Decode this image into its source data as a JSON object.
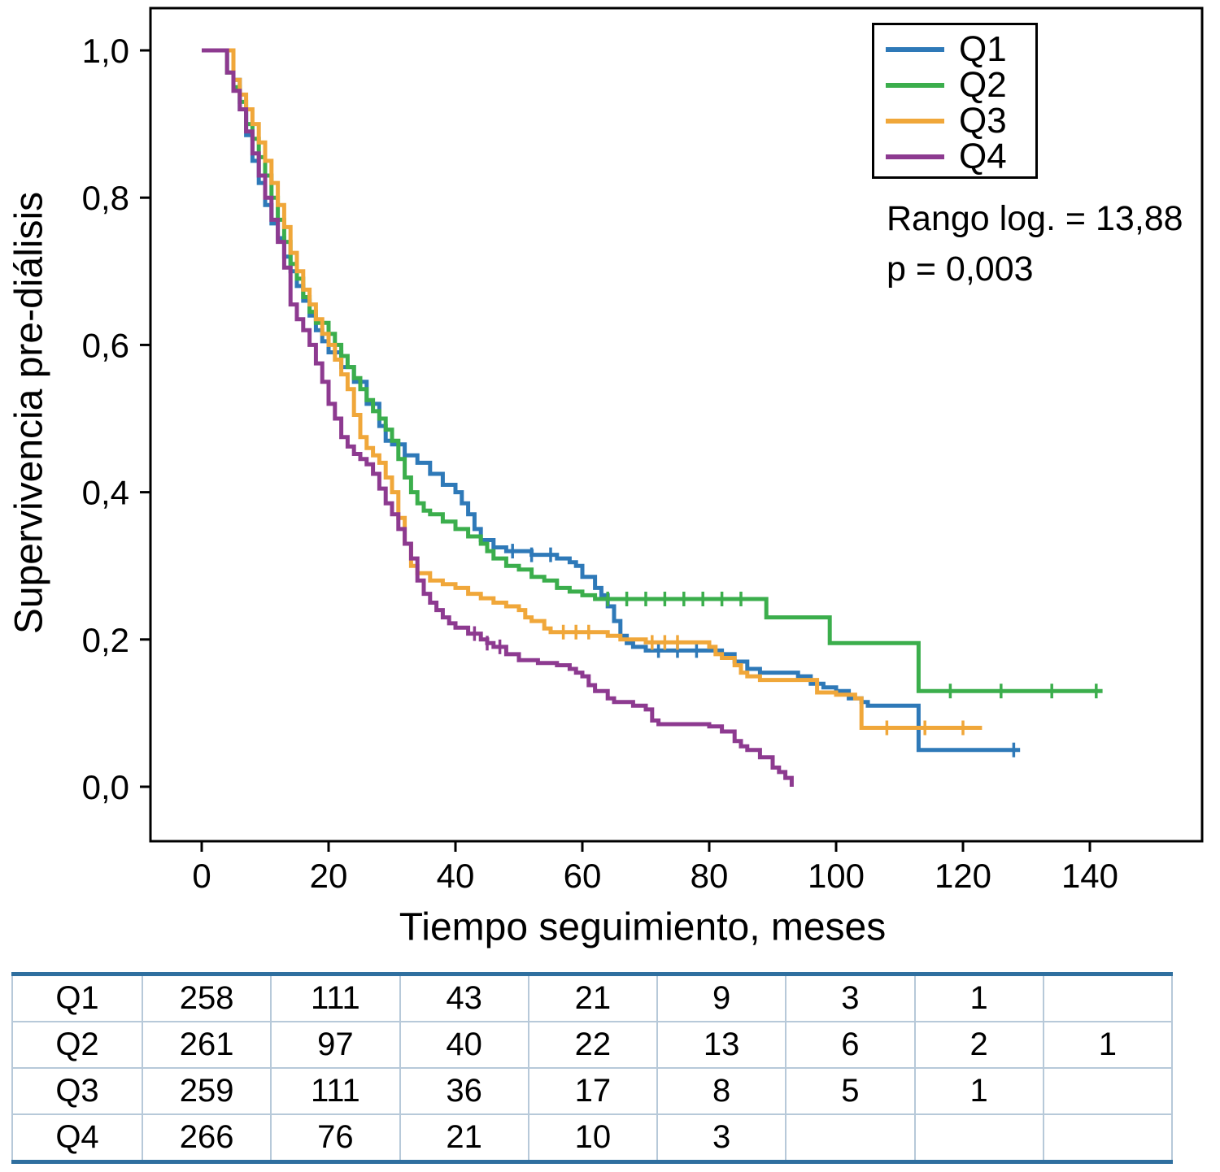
{
  "chart_data": {
    "type": "line",
    "variant": "kaplan_meier_step",
    "title": "",
    "xlabel": "Tiempo seguimiento, meses",
    "ylabel": "Supervivencia pre-diálisis",
    "xlim": [
      0,
      157
    ],
    "ylim": [
      0,
      1
    ],
    "x_ticks": [
      0,
      20,
      40,
      60,
      80,
      100,
      120,
      140
    ],
    "y_ticks": [
      0,
      0.2,
      0.4,
      0.6,
      0.8,
      1.0
    ],
    "y_tick_labels": [
      "0,0",
      "0,2",
      "0,4",
      "0,6",
      "0,8",
      "1,0"
    ],
    "grid": false,
    "legend_position": "top-right",
    "annotations": [
      "Rango log. = 13,88",
      "p = 0,003"
    ],
    "series": [
      {
        "name": "Q1",
        "color": "#2e79b8",
        "points": [
          [
            0,
            1
          ],
          [
            4,
            1
          ],
          [
            5,
            0.96
          ],
          [
            6,
            0.92
          ],
          [
            7,
            0.885
          ],
          [
            8,
            0.85
          ],
          [
            9,
            0.82
          ],
          [
            10,
            0.79
          ],
          [
            11,
            0.765
          ],
          [
            12,
            0.745
          ],
          [
            13,
            0.72
          ],
          [
            14,
            0.7
          ],
          [
            15,
            0.68
          ],
          [
            16,
            0.66
          ],
          [
            17,
            0.64
          ],
          [
            18,
            0.62
          ],
          [
            19,
            0.605
          ],
          [
            20,
            0.59
          ],
          [
            22,
            0.57
          ],
          [
            24,
            0.55
          ],
          [
            26,
            0.52
          ],
          [
            28,
            0.49
          ],
          [
            29,
            0.47
          ],
          [
            30,
            0.465
          ],
          [
            32,
            0.45
          ],
          [
            34,
            0.44
          ],
          [
            36,
            0.425
          ],
          [
            38,
            0.41
          ],
          [
            40,
            0.4
          ],
          [
            41,
            0.385
          ],
          [
            42,
            0.37
          ],
          [
            43,
            0.35
          ],
          [
            44,
            0.335
          ],
          [
            46,
            0.325
          ],
          [
            48,
            0.32
          ],
          [
            52,
            0.315
          ],
          [
            56,
            0.31
          ],
          [
            58,
            0.305
          ],
          [
            59,
            0.3
          ],
          [
            60,
            0.285
          ],
          [
            62,
            0.27
          ],
          [
            63,
            0.26
          ],
          [
            64,
            0.245
          ],
          [
            65,
            0.225
          ],
          [
            66,
            0.205
          ],
          [
            67,
            0.195
          ],
          [
            68,
            0.19
          ],
          [
            70,
            0.185
          ],
          [
            80,
            0.185
          ],
          [
            82,
            0.18
          ],
          [
            84,
            0.17
          ],
          [
            86,
            0.16
          ],
          [
            88,
            0.155
          ],
          [
            94,
            0.15
          ],
          [
            96,
            0.14
          ],
          [
            98,
            0.135
          ],
          [
            100,
            0.13
          ],
          [
            102,
            0.12
          ],
          [
            104,
            0.115
          ],
          [
            105,
            0.11
          ],
          [
            112,
            0.11
          ],
          [
            113,
            0.05
          ],
          [
            129,
            0.05
          ]
        ],
        "censor_marks": [
          49,
          52,
          55,
          72,
          75,
          78,
          128
        ]
      },
      {
        "name": "Q2",
        "color": "#3bae4c",
        "points": [
          [
            0,
            1
          ],
          [
            3,
            1
          ],
          [
            4,
            0.97
          ],
          [
            5,
            0.95
          ],
          [
            6,
            0.93
          ],
          [
            7,
            0.9
          ],
          [
            8,
            0.88
          ],
          [
            9,
            0.855
          ],
          [
            10,
            0.83
          ],
          [
            11,
            0.8
          ],
          [
            12,
            0.77
          ],
          [
            13,
            0.74
          ],
          [
            14,
            0.71
          ],
          [
            15,
            0.69
          ],
          [
            16,
            0.665
          ],
          [
            17,
            0.645
          ],
          [
            18,
            0.63
          ],
          [
            20,
            0.615
          ],
          [
            21,
            0.6
          ],
          [
            22,
            0.585
          ],
          [
            23,
            0.57
          ],
          [
            24,
            0.555
          ],
          [
            25,
            0.54
          ],
          [
            26,
            0.525
          ],
          [
            27,
            0.51
          ],
          [
            28,
            0.5
          ],
          [
            29,
            0.485
          ],
          [
            30,
            0.47
          ],
          [
            31,
            0.445
          ],
          [
            32,
            0.42
          ],
          [
            33,
            0.4
          ],
          [
            34,
            0.385
          ],
          [
            35,
            0.375
          ],
          [
            36,
            0.37
          ],
          [
            38,
            0.36
          ],
          [
            40,
            0.35
          ],
          [
            42,
            0.34
          ],
          [
            44,
            0.33
          ],
          [
            45,
            0.32
          ],
          [
            46,
            0.31
          ],
          [
            48,
            0.3
          ],
          [
            50,
            0.295
          ],
          [
            52,
            0.285
          ],
          [
            54,
            0.28
          ],
          [
            56,
            0.27
          ],
          [
            58,
            0.265
          ],
          [
            60,
            0.26
          ],
          [
            62,
            0.255
          ],
          [
            88,
            0.255
          ],
          [
            89,
            0.23
          ],
          [
            98,
            0.23
          ],
          [
            99,
            0.195
          ],
          [
            112,
            0.195
          ],
          [
            113,
            0.13
          ],
          [
            142,
            0.13
          ]
        ],
        "censor_marks": [
          64,
          67,
          70,
          73,
          76,
          79,
          82,
          85,
          118,
          126,
          134,
          141
        ]
      },
      {
        "name": "Q3",
        "color": "#f0a73a",
        "points": [
          [
            0,
            1
          ],
          [
            4,
            1
          ],
          [
            5,
            0.96
          ],
          [
            6,
            0.94
          ],
          [
            7,
            0.92
          ],
          [
            8,
            0.9
          ],
          [
            9,
            0.875
          ],
          [
            10,
            0.85
          ],
          [
            11,
            0.82
          ],
          [
            12,
            0.79
          ],
          [
            13,
            0.76
          ],
          [
            14,
            0.725
          ],
          [
            15,
            0.7
          ],
          [
            16,
            0.675
          ],
          [
            17,
            0.655
          ],
          [
            18,
            0.635
          ],
          [
            19,
            0.615
          ],
          [
            20,
            0.6
          ],
          [
            21,
            0.58
          ],
          [
            22,
            0.56
          ],
          [
            23,
            0.54
          ],
          [
            24,
            0.505
          ],
          [
            25,
            0.475
          ],
          [
            26,
            0.46
          ],
          [
            27,
            0.45
          ],
          [
            28,
            0.44
          ],
          [
            29,
            0.42
          ],
          [
            30,
            0.4
          ],
          [
            31,
            0.365
          ],
          [
            32,
            0.33
          ],
          [
            33,
            0.3
          ],
          [
            34,
            0.29
          ],
          [
            36,
            0.28
          ],
          [
            38,
            0.275
          ],
          [
            40,
            0.27
          ],
          [
            42,
            0.262
          ],
          [
            44,
            0.256
          ],
          [
            46,
            0.25
          ],
          [
            48,
            0.245
          ],
          [
            50,
            0.24
          ],
          [
            51,
            0.23
          ],
          [
            52,
            0.225
          ],
          [
            54,
            0.215
          ],
          [
            55,
            0.21
          ],
          [
            62,
            0.21
          ],
          [
            64,
            0.205
          ],
          [
            66,
            0.2
          ],
          [
            70,
            0.196
          ],
          [
            78,
            0.196
          ],
          [
            80,
            0.19
          ],
          [
            81,
            0.18
          ],
          [
            82,
            0.175
          ],
          [
            84,
            0.165
          ],
          [
            85,
            0.155
          ],
          [
            86,
            0.15
          ],
          [
            88,
            0.145
          ],
          [
            96,
            0.145
          ],
          [
            97,
            0.128
          ],
          [
            100,
            0.125
          ],
          [
            103,
            0.12
          ],
          [
            104,
            0.08
          ],
          [
            123,
            0.08
          ]
        ],
        "censor_marks": [
          57,
          59,
          61,
          71,
          73,
          75,
          108,
          114,
          120
        ]
      },
      {
        "name": "Q4",
        "color": "#8d3a90",
        "points": [
          [
            0,
            1
          ],
          [
            3,
            1
          ],
          [
            4,
            0.97
          ],
          [
            5,
            0.945
          ],
          [
            6,
            0.92
          ],
          [
            7,
            0.89
          ],
          [
            8,
            0.86
          ],
          [
            9,
            0.83
          ],
          [
            10,
            0.8
          ],
          [
            11,
            0.77
          ],
          [
            12,
            0.74
          ],
          [
            13,
            0.705
          ],
          [
            14,
            0.655
          ],
          [
            15,
            0.635
          ],
          [
            16,
            0.62
          ],
          [
            17,
            0.6
          ],
          [
            18,
            0.575
          ],
          [
            19,
            0.55
          ],
          [
            20,
            0.52
          ],
          [
            21,
            0.5
          ],
          [
            22,
            0.475
          ],
          [
            23,
            0.462
          ],
          [
            24,
            0.452
          ],
          [
            25,
            0.445
          ],
          [
            26,
            0.438
          ],
          [
            27,
            0.425
          ],
          [
            28,
            0.405
          ],
          [
            29,
            0.385
          ],
          [
            30,
            0.37
          ],
          [
            31,
            0.35
          ],
          [
            32,
            0.33
          ],
          [
            33,
            0.31
          ],
          [
            34,
            0.28
          ],
          [
            35,
            0.262
          ],
          [
            36,
            0.25
          ],
          [
            37,
            0.24
          ],
          [
            38,
            0.23
          ],
          [
            39,
            0.222
          ],
          [
            40,
            0.216
          ],
          [
            42,
            0.208
          ],
          [
            44,
            0.2
          ],
          [
            45,
            0.195
          ],
          [
            46,
            0.19
          ],
          [
            48,
            0.18
          ],
          [
            50,
            0.172
          ],
          [
            53,
            0.168
          ],
          [
            56,
            0.165
          ],
          [
            58,
            0.16
          ],
          [
            59,
            0.155
          ],
          [
            60,
            0.15
          ],
          [
            61,
            0.138
          ],
          [
            62,
            0.13
          ],
          [
            64,
            0.12
          ],
          [
            65,
            0.115
          ],
          [
            68,
            0.11
          ],
          [
            70,
            0.105
          ],
          [
            71,
            0.09
          ],
          [
            72,
            0.085
          ],
          [
            80,
            0.082
          ],
          [
            82,
            0.075
          ],
          [
            84,
            0.062
          ],
          [
            85,
            0.055
          ],
          [
            86,
            0.05
          ],
          [
            88,
            0.04
          ],
          [
            90,
            0.026
          ],
          [
            91,
            0.02
          ],
          [
            92,
            0.012
          ],
          [
            93,
            0
          ]
        ],
        "censor_marks": [
          43,
          45,
          47
        ]
      }
    ]
  },
  "risk_table": {
    "rows": [
      {
        "label": "Q1",
        "values": [
          "258",
          "111",
          "43",
          "21",
          "9",
          "3",
          "1",
          ""
        ]
      },
      {
        "label": "Q2",
        "values": [
          "261",
          "97",
          "40",
          "22",
          "13",
          "6",
          "2",
          "1"
        ]
      },
      {
        "label": "Q3",
        "values": [
          "259",
          "111",
          "36",
          "17",
          "8",
          "5",
          "1",
          ""
        ]
      },
      {
        "label": "Q4",
        "values": [
          "266",
          "76",
          "21",
          "10",
          "3",
          "",
          "",
          ""
        ]
      }
    ]
  }
}
